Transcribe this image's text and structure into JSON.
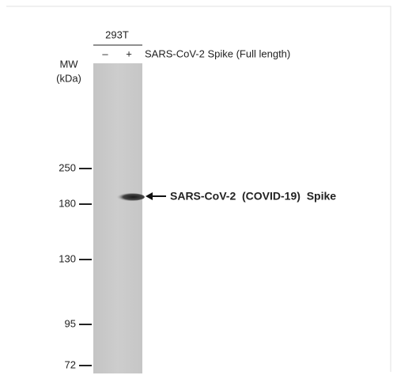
{
  "header": {
    "cell_line": "293T",
    "lanes": [
      "–",
      "+"
    ],
    "treatment": "SARS-CoV-2 Spike (Full length)"
  },
  "mw_label": {
    "line1": "MW",
    "line2": "(kDa)"
  },
  "markers": [
    "250",
    "180",
    "130",
    "95",
    "72"
  ],
  "band_label": "SARS-CoV-2  (COVID-19)  Spike"
}
